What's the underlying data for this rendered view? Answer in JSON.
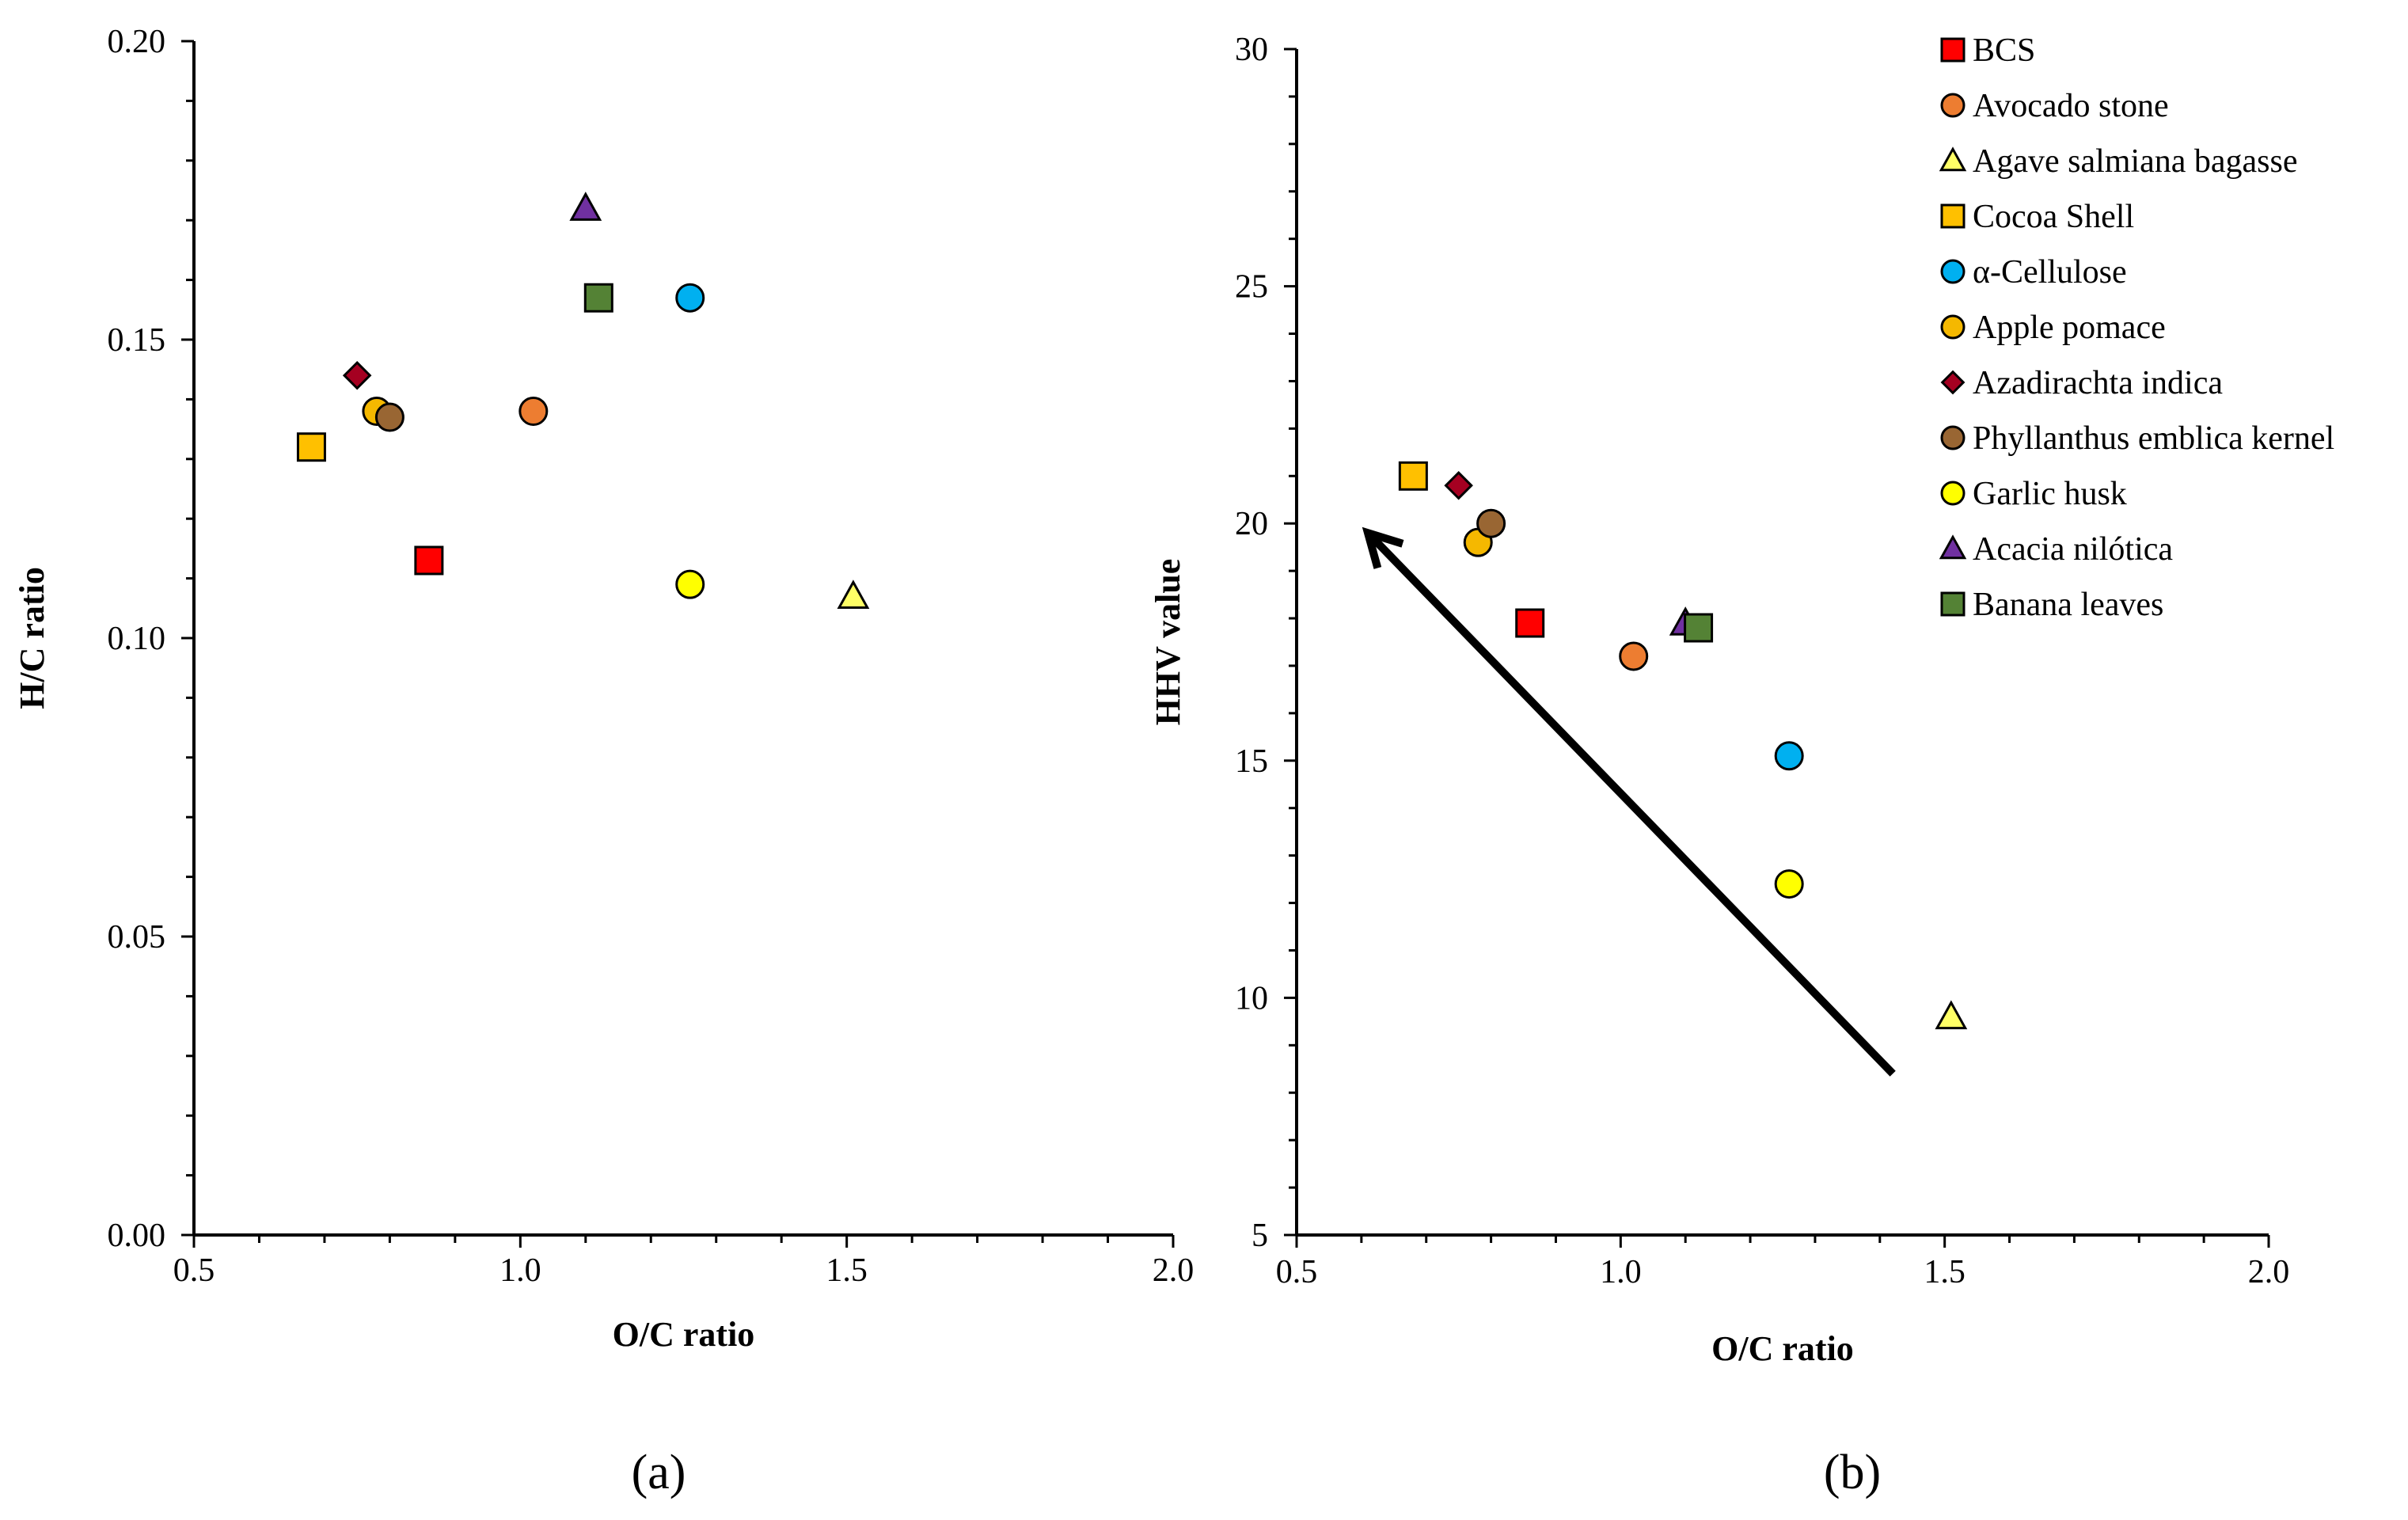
{
  "figure": {
    "panel_a_label": "(a)",
    "panel_b_label": "(b)"
  },
  "colors": {
    "BCS": "#ff0000",
    "Avocado stone": "#ed7d31",
    "Agave salmiana bagasse": "#ffff66",
    "Cocoa Shell": "#ffc000",
    "α-Cellulose": "#00b0f0",
    "Apple pomace": "#f5b800",
    "Azadirachta indica": "#a50021",
    "Phyllanthus emblica kernel": "#996633",
    "Garlic husk": "#ffff00",
    "Acacia nilótica": "#7030a0",
    "Banana leaves": "#548235"
  },
  "legend": {
    "position": "top-right",
    "items": [
      {
        "label": "BCS",
        "marker": "square"
      },
      {
        "label": "Avocado stone",
        "marker": "circle"
      },
      {
        "label": "Agave salmiana bagasse",
        "marker": "triangle"
      },
      {
        "label": "Cocoa Shell",
        "marker": "square"
      },
      {
        "label": "α-Cellulose",
        "marker": "circle"
      },
      {
        "label": "Apple pomace",
        "marker": "circle"
      },
      {
        "label": "Azadirachta indica",
        "marker": "diamond"
      },
      {
        "label": "Phyllanthus emblica kernel",
        "marker": "circle"
      },
      {
        "label": "Garlic husk",
        "marker": "circle"
      },
      {
        "label": "Acacia nilótica",
        "marker": "triangle"
      },
      {
        "label": "Banana leaves",
        "marker": "square"
      }
    ]
  },
  "chart_data": [
    {
      "id": "a",
      "type": "scatter",
      "title": "",
      "xlabel": "O/C ratio",
      "ylabel": "H/C ratio",
      "xlim": [
        0.5,
        2.0
      ],
      "ylim": [
        0.0,
        0.2
      ],
      "xticks": [
        "0.5",
        "1.0",
        "1.5",
        "2.0"
      ],
      "yticks": [
        "0.00",
        "0.05",
        "0.10",
        "0.15",
        "0.20"
      ],
      "x_minor": 0.1,
      "y_minor": 0.01,
      "series": [
        {
          "name": "BCS",
          "x": 0.86,
          "y": 0.113
        },
        {
          "name": "Avocado stone",
          "x": 1.02,
          "y": 0.138
        },
        {
          "name": "Agave salmiana bagasse",
          "x": 1.51,
          "y": 0.107
        },
        {
          "name": "Cocoa Shell",
          "x": 0.68,
          "y": 0.132
        },
        {
          "name": "α-Cellulose",
          "x": 1.26,
          "y": 0.157
        },
        {
          "name": "Apple pomace",
          "x": 0.78,
          "y": 0.138
        },
        {
          "name": "Azadirachta indica",
          "x": 0.75,
          "y": 0.144
        },
        {
          "name": "Phyllanthus emblica kernel",
          "x": 0.8,
          "y": 0.137
        },
        {
          "name": "Garlic husk",
          "x": 1.26,
          "y": 0.109
        },
        {
          "name": "Acacia nilótica",
          "x": 1.1,
          "y": 0.172
        },
        {
          "name": "Banana leaves",
          "x": 1.12,
          "y": 0.157
        }
      ]
    },
    {
      "id": "b",
      "type": "scatter",
      "title": "",
      "xlabel": "O/C ratio",
      "ylabel": "HHV value",
      "xlim": [
        0.5,
        2.0
      ],
      "ylim": [
        5,
        30
      ],
      "xticks": [
        "0.5",
        "1.0",
        "1.5",
        "2.0"
      ],
      "yticks": [
        "5",
        "10",
        "15",
        "20",
        "25",
        "30"
      ],
      "x_minor": 0.1,
      "y_minor": 1,
      "series": [
        {
          "name": "BCS",
          "x": 0.86,
          "y": 17.9
        },
        {
          "name": "Avocado stone",
          "x": 1.02,
          "y": 17.2
        },
        {
          "name": "Agave salmiana bagasse",
          "x": 1.51,
          "y": 9.6
        },
        {
          "name": "Cocoa Shell",
          "x": 0.68,
          "y": 21.0
        },
        {
          "name": "α-Cellulose",
          "x": 1.26,
          "y": 15.1
        },
        {
          "name": "Apple pomace",
          "x": 0.78,
          "y": 19.6
        },
        {
          "name": "Azadirachta indica",
          "x": 0.75,
          "y": 20.8
        },
        {
          "name": "Phyllanthus emblica kernel",
          "x": 0.8,
          "y": 20.0
        },
        {
          "name": "Garlic husk",
          "x": 1.26,
          "y": 12.4
        },
        {
          "name": "Acacia nilótica",
          "x": 1.1,
          "y": 17.9
        },
        {
          "name": "Banana leaves",
          "x": 1.12,
          "y": 17.8
        }
      ],
      "annotations": [
        {
          "type": "arrow",
          "from": [
            1.42,
            8.4
          ],
          "to": [
            0.61,
            19.8
          ]
        }
      ]
    }
  ]
}
